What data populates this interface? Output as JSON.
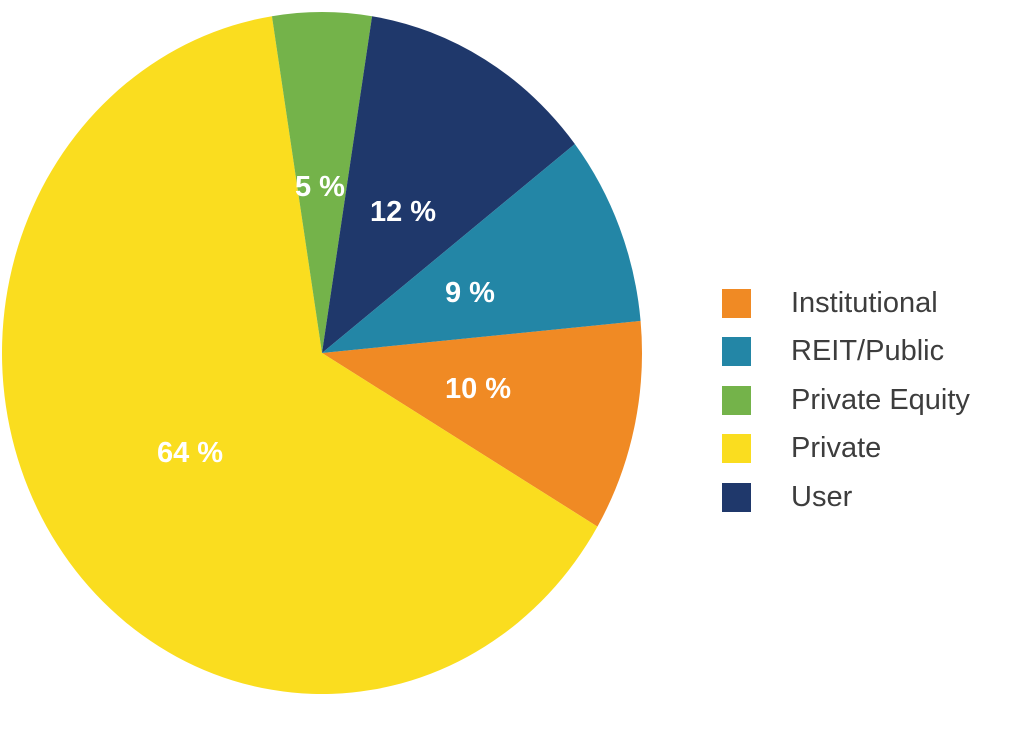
{
  "chart_data": {
    "type": "pie",
    "title": "",
    "slices": [
      {
        "name": "Institutional",
        "value": 10,
        "label": "10 %",
        "color": "#F08A24"
      },
      {
        "name": "Private",
        "value": 64,
        "label": "64 %",
        "color": "#FADD1F"
      },
      {
        "name": "Private Equity",
        "value": 5,
        "label": "5 %",
        "color": "#74B34A"
      },
      {
        "name": "User",
        "value": 12,
        "label": "12 %",
        "color": "#1F386B"
      },
      {
        "name": "REIT/Public",
        "value": 9,
        "label": "9 %",
        "color": "#2386A6"
      }
    ],
    "legend": [
      "Institutional",
      "REIT/Public",
      "Private Equity",
      "Private",
      "User"
    ],
    "legend_placement": "right"
  }
}
